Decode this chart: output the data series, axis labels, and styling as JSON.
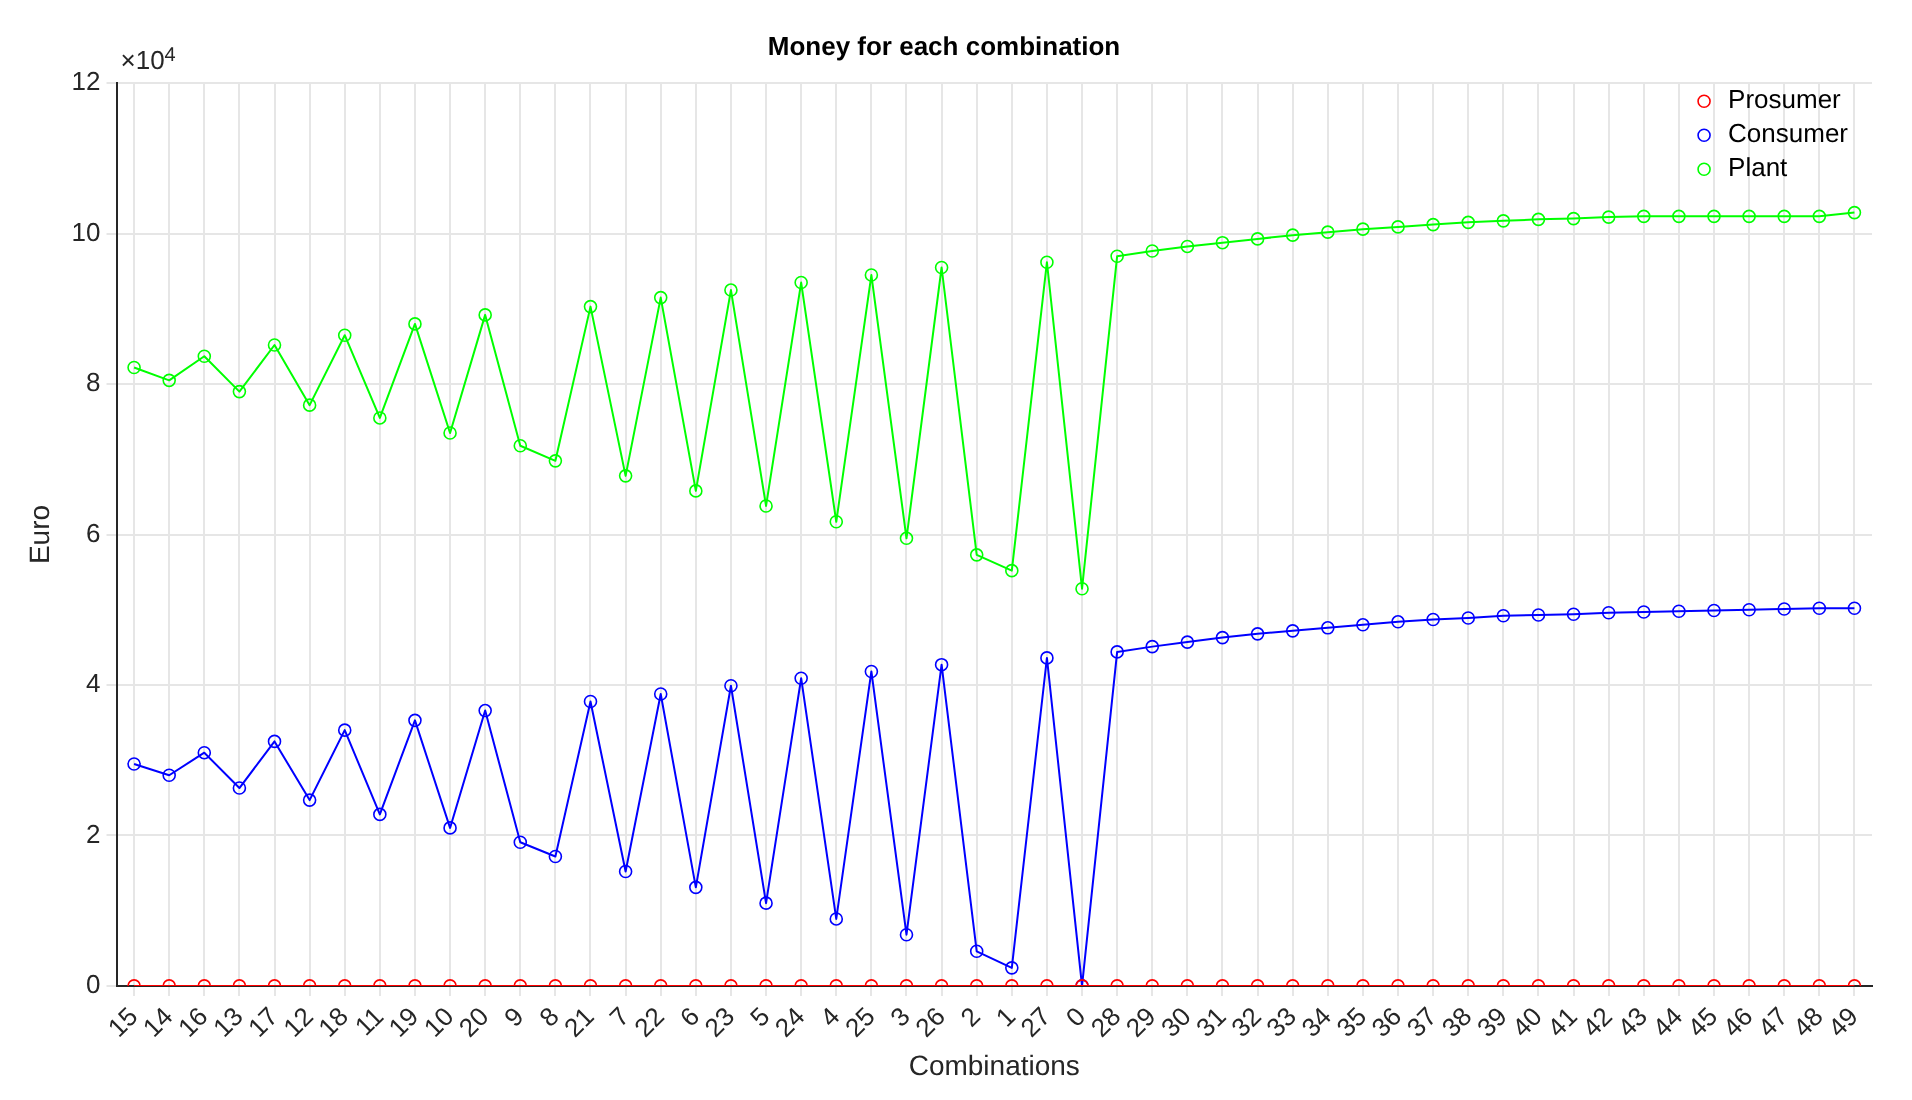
{
  "chart_data": {
    "type": "line",
    "title": "Money for each combination",
    "xlabel": "Combinations",
    "ylabel": "Euro",
    "annotations": [
      "×10$^{4}$"
    ],
    "categories": [
      "15",
      "14",
      "16",
      "13",
      "17",
      "12",
      "18",
      "11",
      "19",
      "10",
      "20",
      "9",
      "8",
      "21",
      "7",
      "22",
      "6",
      "23",
      "5",
      "24",
      "4",
      "25",
      "3",
      "26",
      "2",
      "1",
      "27",
      "0",
      "28",
      "29",
      "30",
      "31",
      "32",
      "33",
      "34",
      "35",
      "36",
      "37",
      "38",
      "39",
      "40",
      "41",
      "42",
      "43",
      "44",
      "45",
      "46",
      "47",
      "48",
      "49"
    ],
    "series": [
      {
        "name": "Prosumer",
        "color": "#ff0000",
        "values": [
          0,
          0,
          0,
          0,
          0,
          0,
          0,
          0,
          0,
          0,
          0,
          0,
          0,
          0,
          0,
          0,
          0,
          0,
          0,
          0,
          0,
          0,
          0,
          0,
          0,
          0,
          0,
          0,
          0,
          0,
          0,
          0,
          0,
          0,
          0,
          0,
          0,
          0,
          0,
          0,
          0,
          0,
          0,
          0,
          0,
          0,
          0,
          0,
          0,
          0
        ]
      },
      {
        "name": "Consumer",
        "color": "#0000ff",
        "values": [
          2.95,
          2.8,
          3.1,
          2.63,
          3.25,
          2.47,
          3.4,
          2.28,
          3.53,
          2.1,
          3.66,
          1.91,
          1.72,
          3.78,
          1.52,
          3.88,
          1.31,
          3.99,
          1.1,
          4.09,
          0.89,
          4.18,
          0.68,
          4.27,
          0.46,
          0.24,
          4.36,
          0,
          4.44,
          4.51,
          4.57,
          4.63,
          4.68,
          4.72,
          4.76,
          4.8,
          4.84,
          4.87,
          4.89,
          4.92,
          4.93,
          4.94,
          4.96,
          4.97,
          4.98,
          4.99,
          5.0,
          5.01,
          5.02,
          5.02
        ]
      },
      {
        "name": "Plant",
        "color": "#00ff00",
        "values": [
          8.22,
          8.05,
          8.37,
          7.9,
          8.52,
          7.72,
          8.65,
          7.55,
          8.8,
          7.35,
          8.92,
          7.18,
          6.98,
          9.03,
          6.78,
          9.15,
          6.58,
          9.25,
          6.38,
          9.35,
          6.17,
          9.45,
          5.95,
          9.55,
          5.73,
          5.52,
          9.62,
          5.28,
          9.7,
          9.77,
          9.83,
          9.88,
          9.93,
          9.98,
          10.02,
          10.06,
          10.09,
          10.12,
          10.15,
          10.17,
          10.19,
          10.2,
          10.22,
          10.23,
          10.23,
          10.23,
          10.23,
          10.23,
          10.23,
          10.28
        ]
      }
    ],
    "ylim": [
      0,
      12
    ],
    "yticks": [
      0,
      2,
      4,
      6,
      8,
      10,
      12
    ],
    "grid": true,
    "legend": "top right",
    "marker": "circle",
    "line_style": "solid"
  }
}
